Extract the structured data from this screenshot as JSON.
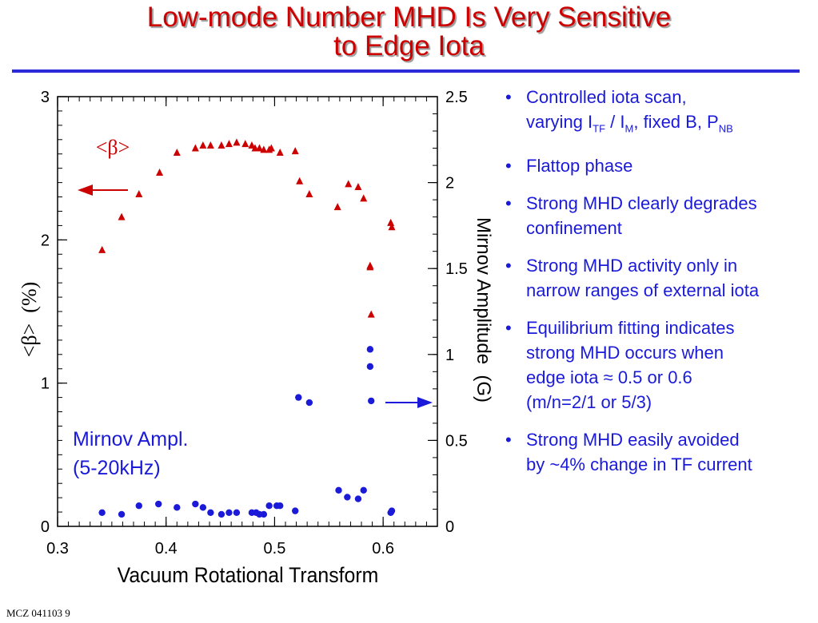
{
  "title": {
    "line1": "Low-mode Number MHD Is Very Sensitive",
    "line2": "to Edge Iota"
  },
  "colors": {
    "title": "#cc0000",
    "beta": "#cc0000",
    "mirnov": "#1a1ad8",
    "rule": "#2a2ad8"
  },
  "chart_data": {
    "type": "scatter",
    "xlabel": "Vacuum Rotational Transform",
    "ylabel_left": "<β>  (%)",
    "ylabel_right": "Mirnov Amplitude  (G)",
    "xlim": [
      0.3,
      0.65
    ],
    "ylim_left": [
      0,
      3
    ],
    "ylim_right": [
      0,
      2.5
    ],
    "x_ticks": [
      "0.3",
      "0.4",
      "0.5",
      "0.6"
    ],
    "y_ticks_left": [
      "0",
      "1",
      "2",
      "3"
    ],
    "y_ticks_right": [
      "0",
      "0.5",
      "1",
      "1.5",
      "2",
      "2.5"
    ],
    "annotation_beta": "<β>",
    "annotation_mirnov": [
      "Mirnov Ampl.",
      "(5-20kHz)"
    ],
    "series": [
      {
        "axis": "left",
        "marker": "triangle",
        "x": [
          0.341,
          0.359,
          0.375,
          0.394,
          0.41,
          0.427,
          0.434,
          0.441,
          0.451,
          0.458,
          0.465,
          0.473,
          0.479,
          0.482,
          0.486,
          0.49,
          0.495,
          0.497,
          0.505,
          0.519,
          0.523,
          0.532,
          0.558,
          0.568,
          0.577,
          0.582,
          0.588,
          0.588,
          0.589,
          0.607,
          0.608
        ],
        "values": [
          1.93,
          2.16,
          2.32,
          2.47,
          2.61,
          2.64,
          2.66,
          2.66,
          2.66,
          2.67,
          2.68,
          2.67,
          2.66,
          2.64,
          2.64,
          2.63,
          2.63,
          2.64,
          2.61,
          2.62,
          2.41,
          2.32,
          2.23,
          2.39,
          2.37,
          2.29,
          1.82,
          1.81,
          1.48,
          2.12,
          2.09
        ]
      },
      {
        "axis": "right",
        "marker": "circle",
        "x": [
          0.341,
          0.359,
          0.375,
          0.393,
          0.41,
          0.427,
          0.434,
          0.441,
          0.451,
          0.458,
          0.465,
          0.479,
          0.483,
          0.486,
          0.49,
          0.495,
          0.502,
          0.505,
          0.519,
          0.522,
          0.532,
          0.559,
          0.567,
          0.577,
          0.582,
          0.588,
          0.588,
          0.589,
          0.607,
          0.608
        ],
        "values": [
          0.08,
          0.07,
          0.12,
          0.13,
          0.11,
          0.13,
          0.11,
          0.08,
          0.07,
          0.08,
          0.08,
          0.08,
          0.08,
          0.07,
          0.07,
          0.12,
          0.12,
          0.12,
          0.09,
          0.75,
          0.72,
          0.21,
          0.17,
          0.16,
          0.21,
          1.03,
          0.93,
          0.73,
          0.08,
          0.09
        ]
      }
    ]
  },
  "bullets": [
    {
      "dot": "•",
      "line1": "Controlled iota scan,",
      "l2a": "varying I",
      "l2b": "TF",
      "l2c": " / I",
      "l2d": "M",
      "l2e": ", fixed B, P",
      "l2f": "NB"
    },
    {
      "dot": "•",
      "line1": "Flattop phase"
    },
    {
      "dot": "•",
      "line1": "Strong MHD clearly degrades",
      "line2": "confinement"
    },
    {
      "dot": "•",
      "line1": "Strong MHD activity only in",
      "line2": "narrow ranges of external iota"
    },
    {
      "dot": "•",
      "line1": "Equilibrium fitting indicates",
      "line2": "strong MHD occurs when",
      "line3": "edge iota ≈ 0.5 or 0.6",
      "line4": "(m/n=2/1 or 5/3)"
    },
    {
      "dot": "•",
      "line1": "Strong MHD easily avoided",
      "line2": "by ~4% change in TF current"
    }
  ],
  "footer": "MCZ 041103  9"
}
